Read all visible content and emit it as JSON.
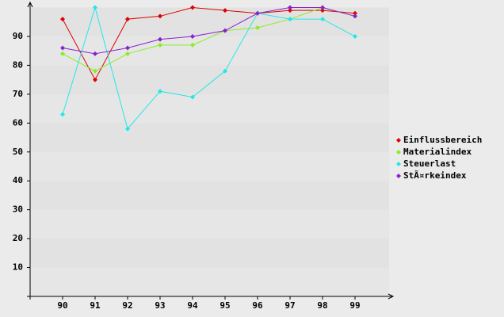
{
  "chart_data": {
    "type": "line",
    "x": [
      90,
      91,
      92,
      93,
      94,
      95,
      96,
      97,
      98,
      99
    ],
    "xlim": [
      89,
      100
    ],
    "xticks": [
      90,
      91,
      92,
      93,
      94,
      95,
      96,
      97,
      98,
      99
    ],
    "ylim": [
      0,
      100
    ],
    "yticks": [
      10,
      20,
      30,
      40,
      50,
      60,
      70,
      80,
      90
    ],
    "grid": true,
    "legend": "right",
    "series": [
      {
        "name": "Einflussbereich",
        "color": "#e00000",
        "values": [
          96,
          75,
          96,
          97,
          100,
          99,
          98,
          99,
          99,
          98
        ]
      },
      {
        "name": "Materialindex",
        "color": "#88ee22",
        "values": [
          84,
          78,
          84,
          87,
          87,
          92,
          93,
          96,
          100,
          97
        ]
      },
      {
        "name": "Steuerlast",
        "color": "#22e8e8",
        "values": [
          63,
          100,
          58,
          71,
          69,
          78,
          98,
          96,
          96,
          90
        ]
      },
      {
        "name": "StÃ¤rkeindex",
        "color": "#8822cc",
        "values": [
          86,
          84,
          86,
          89,
          90,
          92,
          98,
          100,
          100,
          97
        ]
      }
    ]
  }
}
